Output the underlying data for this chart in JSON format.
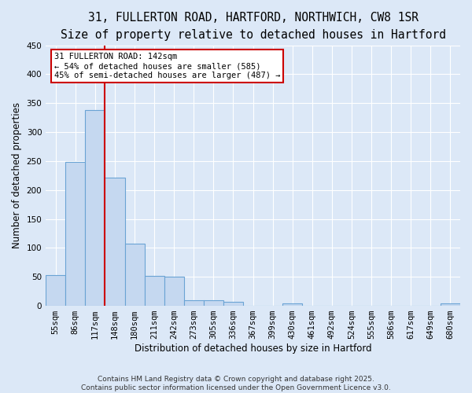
{
  "title_line1": "31, FULLERTON ROAD, HARTFORD, NORTHWICH, CW8 1SR",
  "title_line2": "Size of property relative to detached houses in Hartford",
  "xlabel": "Distribution of detached houses by size in Hartford",
  "ylabel": "Number of detached properties",
  "bar_labels": [
    "55sqm",
    "86sqm",
    "117sqm",
    "148sqm",
    "180sqm",
    "211sqm",
    "242sqm",
    "273sqm",
    "305sqm",
    "336sqm",
    "367sqm",
    "399sqm",
    "430sqm",
    "461sqm",
    "492sqm",
    "524sqm",
    "555sqm",
    "586sqm",
    "617sqm",
    "649sqm",
    "680sqm"
  ],
  "bar_values": [
    53,
    248,
    338,
    222,
    108,
    52,
    50,
    10,
    10,
    7,
    0,
    0,
    4,
    0,
    0,
    0,
    0,
    0,
    0,
    0,
    4
  ],
  "bar_color": "#c5d8f0",
  "bar_edge_color": "#6aa3d4",
  "background_color": "#dce8f7",
  "grid_color": "#ffffff",
  "annotation_line1": "31 FULLERTON ROAD: 142sqm",
  "annotation_line2": "← 54% of detached houses are smaller (585)",
  "annotation_line3": "45% of semi-detached houses are larger (487) →",
  "annotation_box_color": "#ffffff",
  "annotation_box_edge": "#cc0000",
  "vline_x": 2.5,
  "vline_color": "#cc0000",
  "ylim": [
    0,
    450
  ],
  "yticks": [
    0,
    50,
    100,
    150,
    200,
    250,
    300,
    350,
    400,
    450
  ],
  "footer_line1": "Contains HM Land Registry data © Crown copyright and database right 2025.",
  "footer_line2": "Contains public sector information licensed under the Open Government Licence v3.0.",
  "title_fontsize": 10.5,
  "subtitle_fontsize": 9.5,
  "axis_label_fontsize": 8.5,
  "tick_fontsize": 7.5,
  "annotation_fontsize": 7.5,
  "footer_fontsize": 6.5
}
